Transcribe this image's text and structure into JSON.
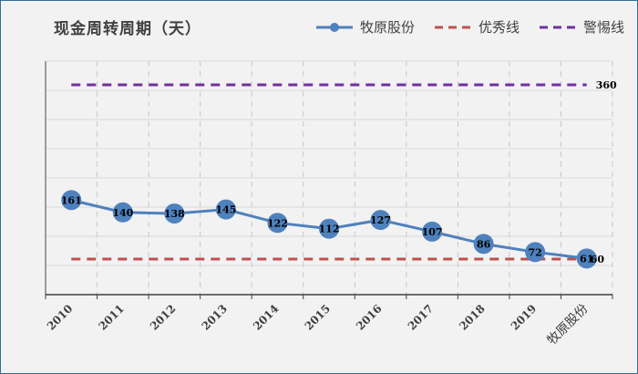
{
  "chart_data": {
    "type": "line",
    "title": "现金周转周期（天）",
    "categories": [
      "2010",
      "2011",
      "2012",
      "2013",
      "2014",
      "2015",
      "2016",
      "2017",
      "2018",
      "2019",
      "牧原股份"
    ],
    "series": [
      {
        "name": "牧原股份",
        "values": [
          161,
          140,
          138,
          145,
          122,
          112,
          127,
          107,
          86,
          72,
          61
        ],
        "color": "#4f81bd",
        "labels": [
          "161",
          "140",
          "138",
          "145",
          "122",
          "112",
          "127",
          "107",
          "86",
          "72",
          "61"
        ]
      },
      {
        "name": "优秀线",
        "values": [
          60,
          60,
          60,
          60,
          60,
          60,
          60,
          60,
          60,
          60,
          60
        ],
        "color": "#c0504d",
        "dashed": true,
        "end_label": "60"
      },
      {
        "name": "警惕线",
        "values": [
          360,
          360,
          360,
          360,
          360,
          360,
          360,
          360,
          360,
          360,
          360
        ],
        "color": "#7030a0",
        "dashed": true,
        "end_label": "360"
      }
    ],
    "grid": true,
    "legend_position": "top-right"
  }
}
